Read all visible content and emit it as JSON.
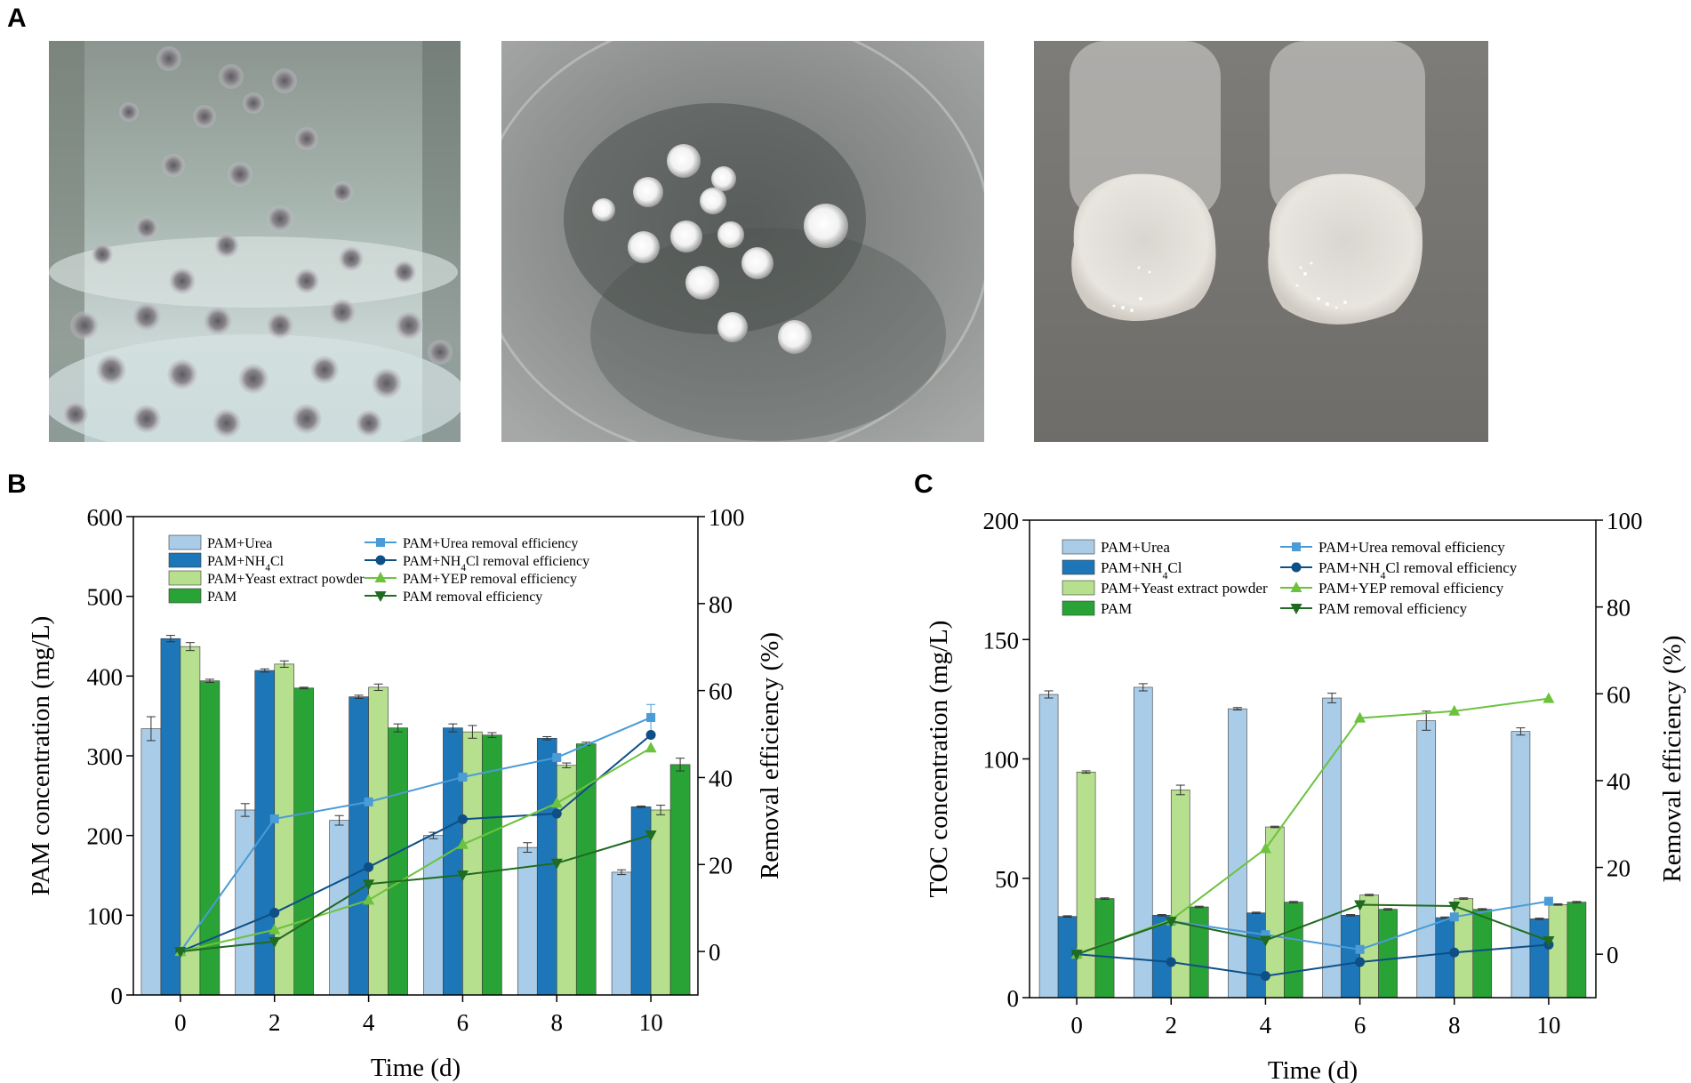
{
  "panels": {
    "a": "A",
    "b": "B",
    "c": "C"
  },
  "photos": [
    {
      "name": "flask-pellets-photo"
    },
    {
      "name": "dish-pellets-photo"
    },
    {
      "name": "agar-colonies-photo"
    }
  ],
  "colors": {
    "urea": "#a9cce8",
    "nh4cl": "#1d76b8",
    "yeast": "#b6df8e",
    "pam": "#2aa336",
    "urea_line": "#4a9bd6",
    "nh4cl_line": "#0e4f85",
    "yep_line": "#6cc23e",
    "pam_line": "#1f6b1f"
  },
  "chart_data": [
    {
      "type": "bar",
      "panel": "B",
      "x": [
        0,
        2,
        4,
        6,
        8,
        10
      ],
      "xlabel": "Time (d)",
      "ylabel": "PAM concentration (mg/L)",
      "y2label": "Removal efficiency (%)",
      "ylim": [
        0,
        600
      ],
      "y2lim": [
        -10,
        100
      ],
      "yticks": [
        0,
        100,
        200,
        300,
        400,
        500,
        600
      ],
      "y2ticks": [
        0,
        20,
        40,
        60,
        80,
        100
      ],
      "legend_placement": "top",
      "bar_series": [
        {
          "name": "PAM+Urea",
          "values": [
            334,
            232,
            219,
            200,
            185,
            154
          ],
          "errors": [
            15,
            8,
            6,
            4,
            6,
            3
          ]
        },
        {
          "name": "PAM+NH4Cl",
          "values": [
            447,
            407,
            374,
            335,
            322,
            236
          ],
          "errors": [
            4,
            2,
            2,
            5,
            2,
            1
          ]
        },
        {
          "name": "PAM+Yeast extract powder",
          "values": [
            437,
            415,
            386,
            330,
            288,
            232
          ],
          "errors": [
            5,
            4,
            4,
            8,
            3,
            6
          ]
        },
        {
          "name": "PAM",
          "values": [
            394,
            385,
            335,
            326,
            315,
            289
          ],
          "errors": [
            2,
            1,
            5,
            3,
            2,
            8
          ]
        }
      ],
      "line_series": [
        {
          "name": "PAM+Urea removal efficiency",
          "marker": "square",
          "values": [
            0,
            30.5,
            34.4,
            40.1,
            44.6,
            53.8
          ],
          "errors": [
            0,
            0,
            0,
            0,
            0,
            3
          ]
        },
        {
          "name": "PAM+NH4Cl removal efficiency",
          "marker": "circle",
          "values": [
            0,
            8.9,
            19.4,
            30.4,
            31.7,
            49.8
          ]
        },
        {
          "name": "PAM+YEP removal efficiency",
          "marker": "triangle-up",
          "values": [
            0,
            5,
            11.8,
            24.6,
            34.1,
            46.8
          ]
        },
        {
          "name": "PAM removal efficiency",
          "marker": "triangle-down",
          "values": [
            0,
            2.3,
            15.5,
            17.6,
            20.3,
            26.8
          ]
        }
      ]
    },
    {
      "type": "bar",
      "panel": "C",
      "x": [
        0,
        2,
        4,
        6,
        8,
        10
      ],
      "xlabel": "Time (d)",
      "ylabel": "TOC concentration (mg/L)",
      "y2label": "Removal efficiency (%)",
      "ylim": [
        0,
        200
      ],
      "y2lim": [
        -10,
        100
      ],
      "yticks": [
        0,
        50,
        100,
        150,
        200
      ],
      "y2ticks": [
        0,
        20,
        40,
        60,
        80,
        100
      ],
      "legend_placement": "top",
      "bar_series": [
        {
          "name": "PAM+Urea",
          "values": [
            127,
            130,
            121,
            125.5,
            116,
            111.5
          ],
          "errors": [
            1.5,
            1.5,
            0.5,
            2,
            4,
            1.5
          ]
        },
        {
          "name": "PAM+NH4Cl",
          "values": [
            34,
            34.5,
            35.5,
            34.5,
            33.5,
            33
          ],
          "errors": [
            0.3,
            0.3,
            0.3,
            0.3,
            0.3,
            0.3
          ]
        },
        {
          "name": "PAM+Yeast extract powder",
          "values": [
            94.5,
            87,
            71.5,
            43,
            41.5,
            39
          ],
          "errors": [
            0.5,
            2,
            0.3,
            0.3,
            0.3,
            0.3
          ]
        },
        {
          "name": "PAM",
          "values": [
            41.5,
            38,
            40,
            37,
            37,
            40
          ],
          "errors": [
            0.3,
            0.3,
            0.3,
            0.3,
            0.3,
            0.3
          ]
        }
      ],
      "line_series": [
        {
          "name": "PAM+Urea removal efficiency",
          "marker": "square",
          "values": [
            0,
            7.6,
            4.5,
            1.1,
            8.6,
            12.2
          ]
        },
        {
          "name": "PAM+NH4Cl removal efficiency",
          "marker": "circle",
          "values": [
            0,
            -1.8,
            -5,
            -1.8,
            0.4,
            2.2
          ]
        },
        {
          "name": "PAM+YEP removal efficiency",
          "marker": "triangle-up",
          "values": [
            0,
            7.9,
            24.3,
            54.4,
            56,
            58.9
          ]
        },
        {
          "name": "PAM removal efficiency",
          "marker": "triangle-down",
          "values": [
            0,
            7.6,
            3.2,
            11.4,
            11.1,
            3.1
          ]
        }
      ]
    }
  ]
}
